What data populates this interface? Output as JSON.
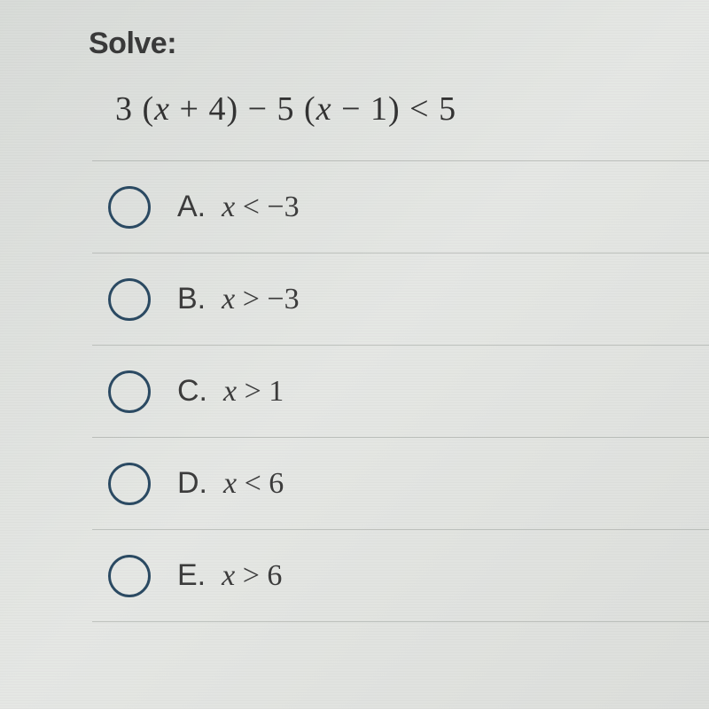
{
  "heading": "Solve:",
  "equation": {
    "lhs_a": "3 (",
    "lhs_var1": "x",
    "lhs_b": " + 4) − 5 (",
    "lhs_var2": "x",
    "lhs_c": " − 1) < 5"
  },
  "options": [
    {
      "letter": "A.",
      "var": "x",
      "rel": " < −3"
    },
    {
      "letter": "B.",
      "var": "x",
      "rel": " > −3"
    },
    {
      "letter": "C.",
      "var": "x",
      "rel": " > 1"
    },
    {
      "letter": "D.",
      "var": "x",
      "rel": " < 6"
    },
    {
      "letter": "E.",
      "var": "x",
      "rel": " > 6"
    }
  ],
  "colors": {
    "radio_border": "#2b4a63",
    "text": "#3a3a3a",
    "divider": "rgba(120,125,120,0.35)"
  }
}
